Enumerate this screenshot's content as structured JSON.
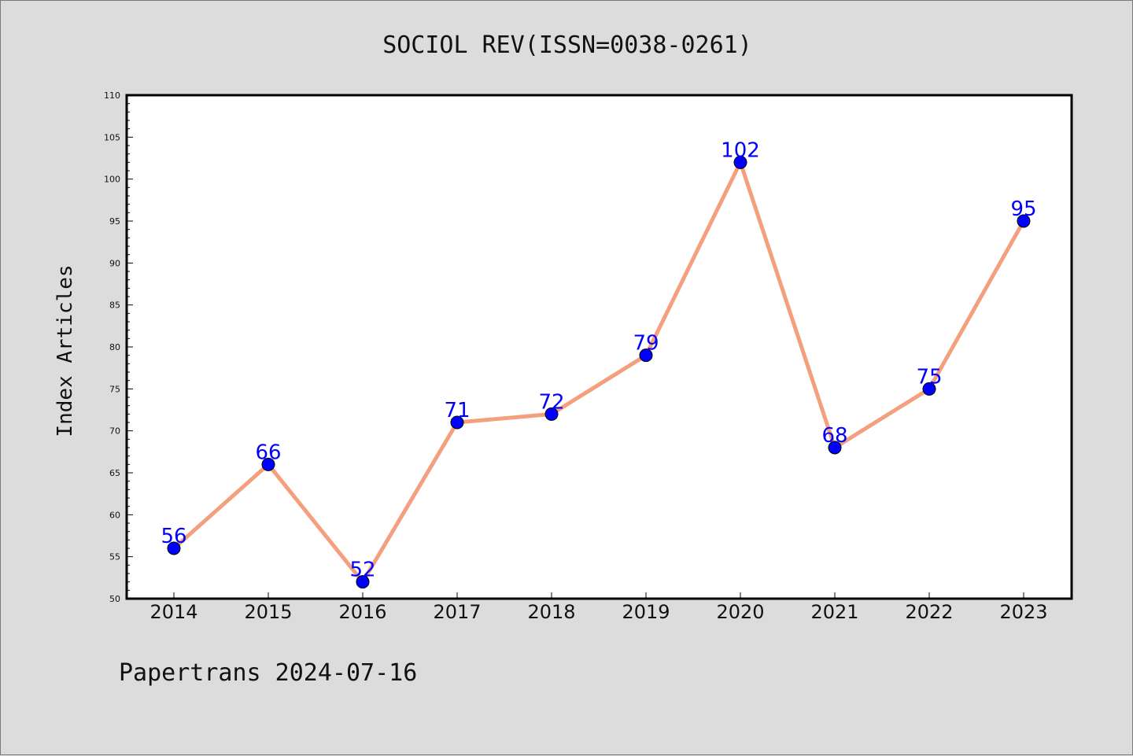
{
  "chart_data": {
    "type": "line",
    "title": "SOCIOL REV(ISSN=0038-0261)",
    "xlabel": "",
    "ylabel": "Index Articles",
    "categories": [
      "2014",
      "2015",
      "2016",
      "2017",
      "2018",
      "2019",
      "2020",
      "2021",
      "2022",
      "2023"
    ],
    "series": [
      {
        "values": [
          56,
          66,
          52,
          71,
          72,
          79,
          102,
          68,
          75,
          95
        ]
      }
    ],
    "data_labels": [
      "56",
      "66",
      "52",
      "71",
      "72",
      "79",
      "102",
      "68",
      "75",
      "95"
    ],
    "ylim": [
      50,
      110
    ],
    "ytick_labels": [
      "50",
      "55",
      "60",
      "65",
      "70",
      "75",
      "80",
      "85",
      "90",
      "95",
      "100",
      "105",
      "110"
    ],
    "grid": false,
    "legend": "none",
    "colors": {
      "line": "#f4a07e",
      "marker": "#0000ff",
      "data_label": "#0000ff",
      "background": "#dcdcdc",
      "plot_background": "#ffffff"
    }
  },
  "footer": "Papertrans 2024-07-16"
}
